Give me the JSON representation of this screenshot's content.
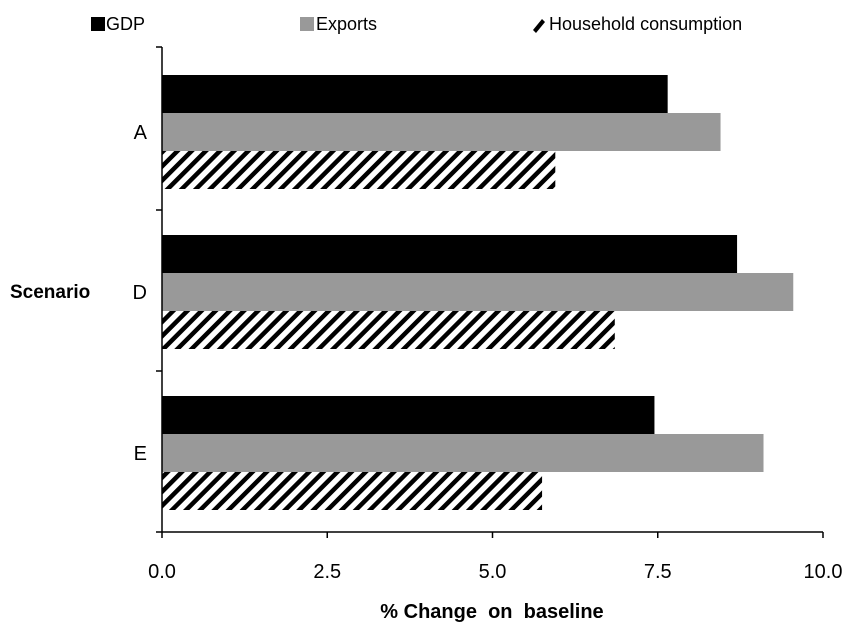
{
  "chart_data": {
    "type": "bar",
    "orientation": "horizontal",
    "categories": [
      "A",
      "D",
      "E"
    ],
    "series": [
      {
        "name": "GDP",
        "values": [
          7.65,
          8.7,
          7.45
        ],
        "color": "#000000",
        "pattern": "solid"
      },
      {
        "name": "Exports",
        "values": [
          8.45,
          9.55,
          9.1
        ],
        "color": "#999999",
        "pattern": "solid"
      },
      {
        "name": "Household consumption",
        "values": [
          5.95,
          6.85,
          5.75
        ],
        "color": "#000000",
        "pattern": "diagonal-hatch"
      }
    ],
    "xlabel": "% Change  on  baseline",
    "ylabel": "Scenario",
    "xlim": [
      0,
      10
    ],
    "xticks": [
      "0.0",
      "2.5",
      "5.0",
      "7.5",
      "10.0"
    ],
    "xtick_values": [
      0,
      2.5,
      5,
      7.5,
      10
    ],
    "grid": false,
    "legend_position": "top"
  }
}
